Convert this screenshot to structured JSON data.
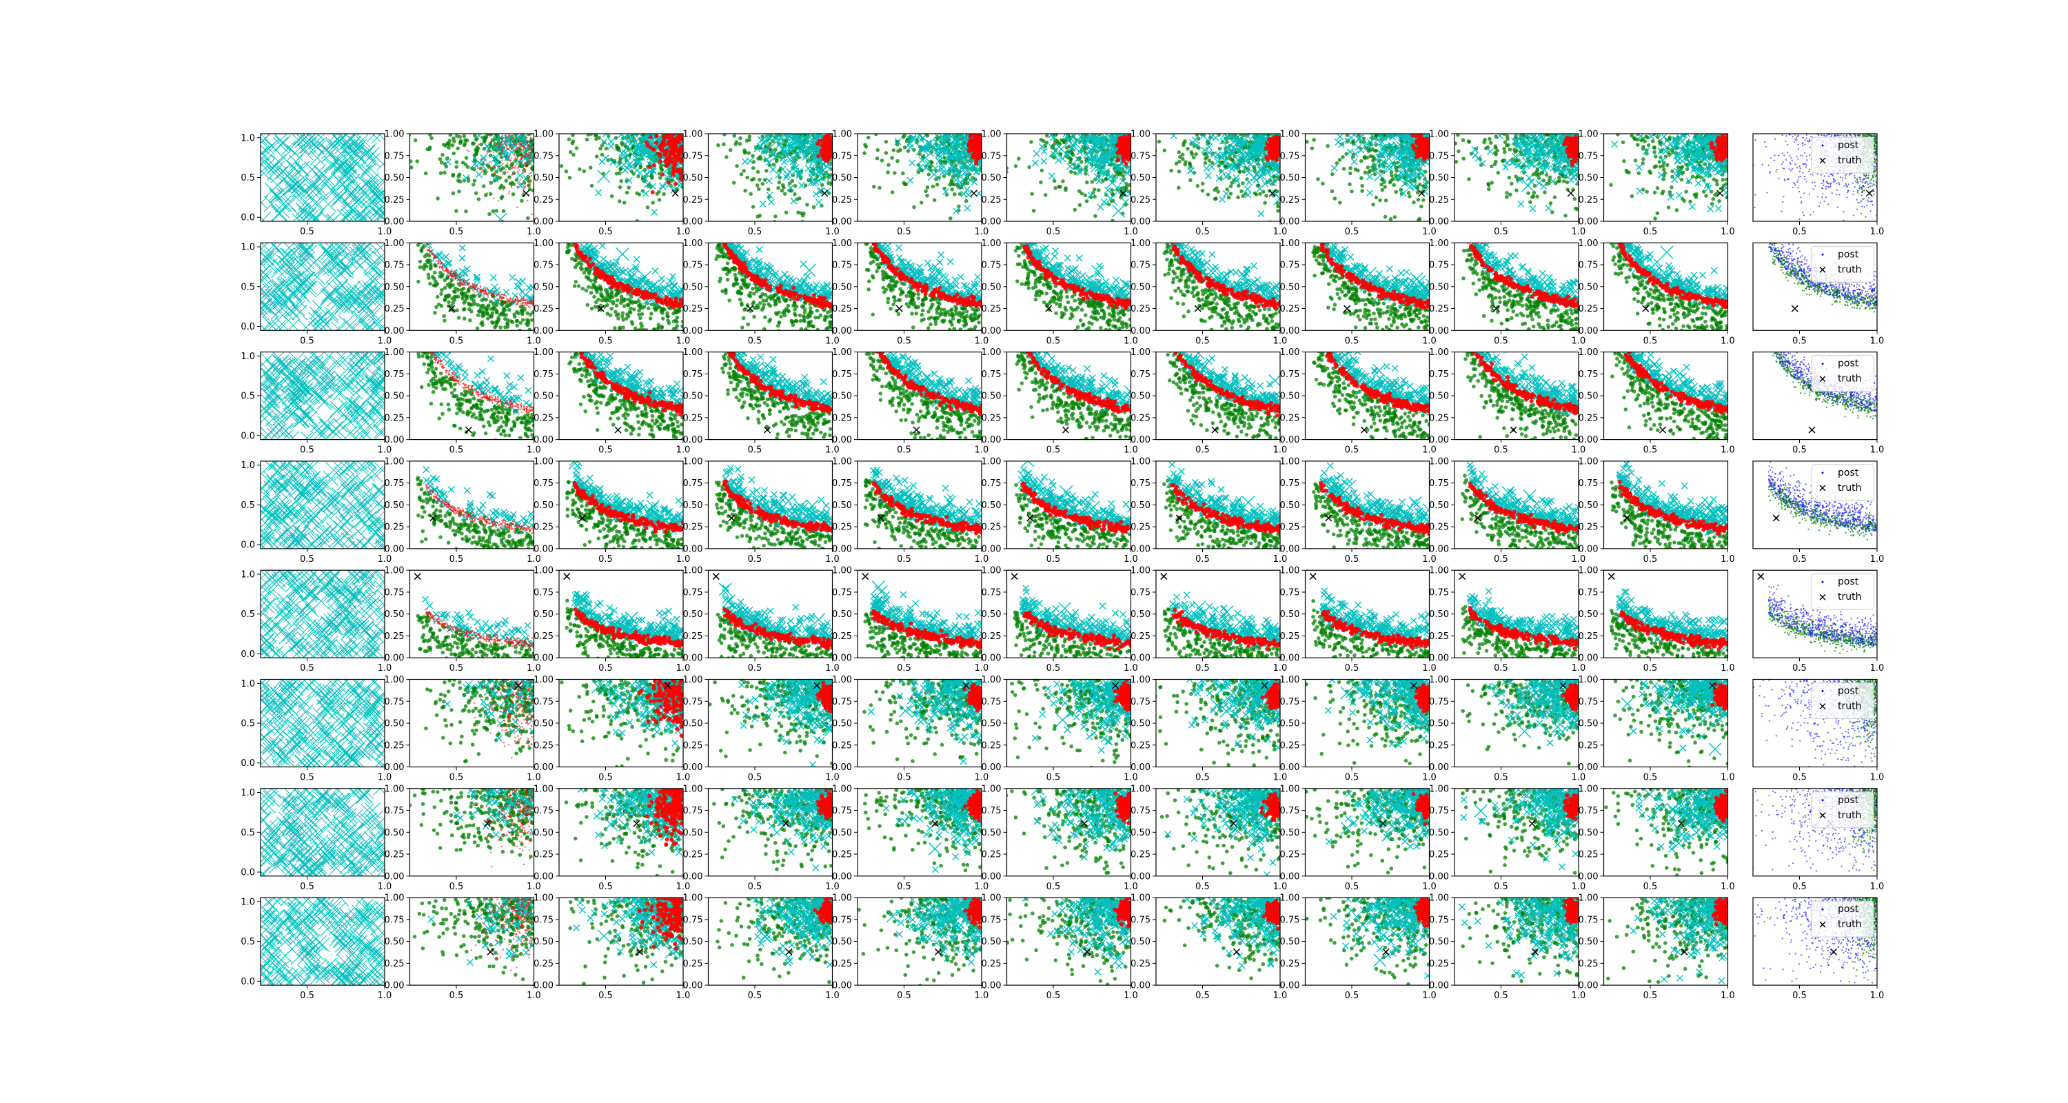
{
  "figure": {
    "rows": 8,
    "cols": 11,
    "description_type": "grid of scatter subplots"
  },
  "colors": {
    "cyan": "#00bfbf",
    "green": "#008000",
    "red": "#ff0000",
    "blue": "#0000ff",
    "black": "#000000",
    "axis": "#000000"
  },
  "legend": {
    "entries": [
      {
        "label": "post",
        "marker": "dot",
        "color": "#0000ff"
      },
      {
        "label": "truth",
        "marker": "x",
        "color": "#000000"
      }
    ]
  },
  "chart_data": {
    "type": "scatter",
    "layout": "8x11 subplot grid",
    "first_column": {
      "xlim": [
        0.2,
        1.0
      ],
      "ylim": [
        -0.05,
        1.05
      ],
      "xticks": [
        "0.5",
        "1.0"
      ],
      "yticks": [
        "0.0",
        "0.5",
        "1.0"
      ],
      "series": [
        {
          "marker": "x",
          "color": "#00bfbf"
        }
      ]
    },
    "middle_columns": {
      "xlim": [
        0.2,
        1.0
      ],
      "ylim": [
        0.0,
        1.0
      ],
      "xticks": [
        "0.5",
        "1.0"
      ],
      "yticks": [
        "0.00",
        "0.25",
        "0.50",
        "0.75",
        "1.00"
      ],
      "series": [
        {
          "marker": "dot",
          "color": "#008000"
        },
        {
          "marker": "x",
          "color": "#00bfbf"
        },
        {
          "marker": "dot",
          "color": "#ff0000"
        },
        {
          "marker": "x",
          "color": "#000000"
        }
      ]
    },
    "last_column": {
      "xlim": [
        0.2,
        1.0
      ],
      "ylim": [
        0.0,
        1.0
      ],
      "xticks": [
        "0.5",
        "1.0"
      ],
      "legend_loc": "upper right",
      "series": [
        {
          "name": "post",
          "marker": "dot",
          "color": "#0000ff"
        },
        {
          "marker": "dot",
          "color": "#008000"
        },
        {
          "name": "truth",
          "marker": "x",
          "color": "#000000"
        }
      ]
    },
    "row_patterns": [
      {
        "row": 1,
        "pattern": "corner",
        "truth": [
          0.95,
          0.32
        ],
        "red_center": [
          0.97,
          0.85
        ]
      },
      {
        "row": 2,
        "pattern": "curve",
        "truth": [
          0.47,
          0.25
        ],
        "curve_k": 0.3
      },
      {
        "row": 3,
        "pattern": "curve",
        "truth": [
          0.58,
          0.11
        ],
        "curve_k": 0.34
      },
      {
        "row": 4,
        "pattern": "curve",
        "truth": [
          0.35,
          0.35
        ],
        "curve_k": 0.22
      },
      {
        "row": 5,
        "pattern": "curve",
        "truth": [
          0.25,
          0.93
        ],
        "curve_k": 0.16
      },
      {
        "row": 6,
        "pattern": "corner",
        "truth": [
          0.9,
          0.93
        ],
        "red_center": [
          0.97,
          0.8
        ]
      },
      {
        "row": 7,
        "pattern": "corner",
        "truth": [
          0.7,
          0.6
        ],
        "red_center": [
          0.97,
          0.8
        ]
      },
      {
        "row": 8,
        "pattern": "corner",
        "truth": [
          0.72,
          0.38
        ],
        "red_center": [
          0.97,
          0.85
        ]
      }
    ]
  }
}
